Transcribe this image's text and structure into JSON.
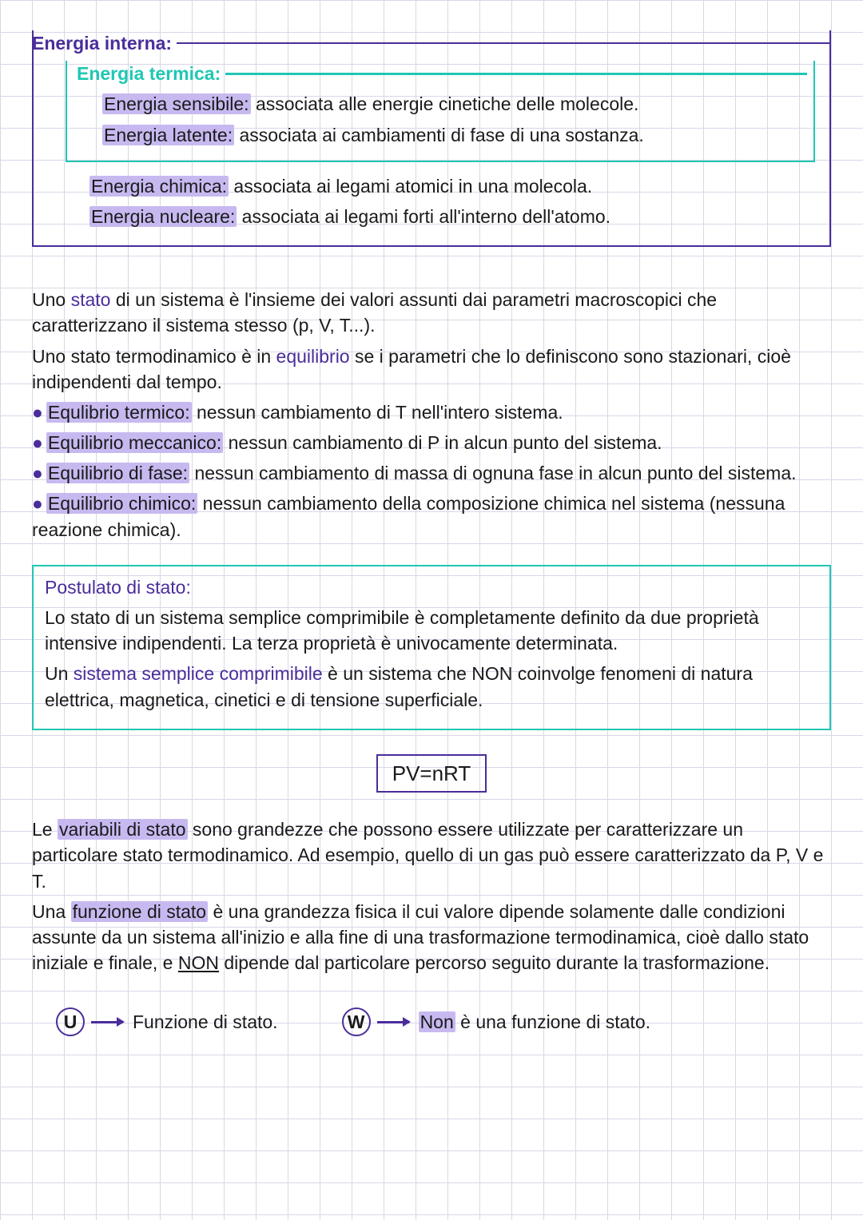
{
  "colors": {
    "grid": "#d8d8e8",
    "purple": "#4a2d9b",
    "teal": "#1fc7b3",
    "highlight": "#c7b9f0",
    "text": "#1a1a1a",
    "background": "#ffffff"
  },
  "typography": {
    "body_fontsize": 23,
    "formula_fontsize": 26,
    "font_family": "Comic Sans MS"
  },
  "outerBox": {
    "title": "Energia interna:",
    "innerBox": {
      "title": "Energia termica:",
      "items": [
        {
          "label": "Energia sensibile:",
          "text": " associata alle energie cinetiche delle molecole."
        },
        {
          "label": "Energia latente:",
          "text": " associata ai cambiamenti di fase di una sostanza."
        }
      ]
    },
    "extraItems": [
      {
        "label": "Energia chimica:",
        "text": " associata ai legami atomici in una molecola."
      },
      {
        "label": "Energia nucleare:",
        "text": " associata ai legami forti all'interno dell'atomo."
      }
    ]
  },
  "body1": {
    "p1a": "Uno ",
    "p1kw": "stato",
    "p1b": " di un sistema è l'insieme dei valori assunti dai parametri macroscopici che caratterizzano il sistema stesso (p, V, T...).",
    "p2a": "Uno stato termodinamico è in ",
    "p2kw": "equilibrio",
    "p2b": " se i parametri che lo definiscono sono stazionari, cioè indipendenti dal tempo.",
    "bullets": [
      {
        "label": "Equlibrio termico:",
        "text": " nessun cambiamento di T nell'intero sistema."
      },
      {
        "label": "Equilibrio meccanico:",
        "text": " nessun cambiamento di P in alcun punto del sistema."
      },
      {
        "label": "Equilibrio di fase:",
        "text": " nessun cambiamento di massa di ognuna fase in alcun punto del sistema."
      },
      {
        "label": "Equilibrio chimico:",
        "text": " nessun cambiamento della composizione chimica nel sistema (nessuna reazione chimica)."
      }
    ]
  },
  "postulate": {
    "title": "Postulato di stato:",
    "p1": "Lo stato di un sistema semplice comprimibile è completamente definito da due proprietà intensive indipendenti. La terza proprietà è univocamente determinata.",
    "p2a": "Un ",
    "p2kw": "sistema semplice comprimibile",
    "p2b": " è un sistema che NON coinvolge fenomeni di natura elettrica, magnetica, cinetici e di tensione superficiale."
  },
  "formula": "PV=nRT",
  "body2": {
    "p1a": "Le ",
    "p1hl": "variabili di stato",
    "p1b": " sono grandezze che possono essere utilizzate per caratterizzare un particolare stato termodinamico. Ad esempio, quello di un gas può essere caratterizzato da P, V e T.",
    "p2a": "Una ",
    "p2hl": "funzione di stato",
    "p2b": " è una grandezza fisica il cui valore dipende solamente dalle condizioni assunte da un sistema all'inizio e alla fine di una trasformazione termodinamica, cioè dallo stato iniziale e finale, e ",
    "p2non": "NON",
    "p2c": " dipende dal particolare percorso seguito durante la trasformazione."
  },
  "footer": {
    "u": {
      "letter": "U",
      "text": "Funzione di stato."
    },
    "w": {
      "letter": "W",
      "pre": "Non",
      "text": " è una funzione di stato."
    }
  }
}
